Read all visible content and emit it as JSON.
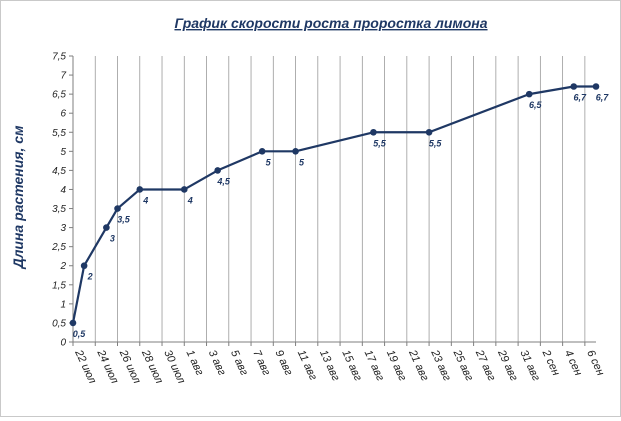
{
  "chart_data": {
    "type": "line",
    "title": "График скорости роста проростка лимона",
    "xlabel": "",
    "ylabel": "Длина растения, см",
    "ylim": [
      0,
      7.5
    ],
    "ytick_step": 0.5,
    "grid": "vertical",
    "x_tick_labels": [
      "22 июл",
      "24 июл",
      "26 июл",
      "28 июл",
      "30 июл",
      "1 авг",
      "3 авг",
      "5 авг",
      "7 авг",
      "9 авг",
      "11 авг",
      "13 авг",
      "15 авг",
      "17 авг",
      "19 авг",
      "21 авг",
      "23 авг",
      "25 авг",
      "27 авг",
      "29 авг",
      "31 авг",
      "2 сен",
      "4 сен",
      "6 сен"
    ],
    "y_tick_labels": [
      "0",
      "0,5",
      "1",
      "1,5",
      "2",
      "2,5",
      "3",
      "3,5",
      "4",
      "4,5",
      "5",
      "5,5",
      "6",
      "6,5",
      "7",
      "7,5"
    ],
    "series": [
      {
        "color": "#1f3864",
        "points": [
          {
            "x": "22 июл",
            "y": 0.5,
            "label": "0,5"
          },
          {
            "x": "23 июл",
            "y": 2,
            "label": "2"
          },
          {
            "x": "25 июл",
            "y": 3,
            "label": "3"
          },
          {
            "x": "26 июл",
            "y": 3.5,
            "label": "3,5"
          },
          {
            "x": "28 июл",
            "y": 4,
            "label": "4"
          },
          {
            "x": "1 авг",
            "y": 4,
            "label": "4"
          },
          {
            "x": "4 авг",
            "y": 4.5,
            "label": "4,5"
          },
          {
            "x": "8 авг",
            "y": 5,
            "label": "5"
          },
          {
            "x": "11 авг",
            "y": 5,
            "label": "5"
          },
          {
            "x": "18 авг",
            "y": 5.5,
            "label": "5,5"
          },
          {
            "x": "23 авг",
            "y": 5.5,
            "label": "5,5"
          },
          {
            "x": "1 сен",
            "y": 6.5,
            "label": "6,5"
          },
          {
            "x": "5 сен",
            "y": 6.7,
            "label": "6,7"
          },
          {
            "x": "7 сен",
            "y": 6.7,
            "label": "6,7"
          }
        ]
      }
    ]
  }
}
